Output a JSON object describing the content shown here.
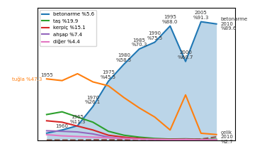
{
  "chart_data": {
    "type": "line",
    "x": [
      1955,
      1960,
      1965,
      1970,
      1975,
      1980,
      1985,
      1990,
      1995,
      2000,
      2005,
      2010
    ],
    "xlim": [
      1952,
      2016
    ],
    "ylim": [
      0,
      102
    ],
    "tick_labels": false,
    "legend": "upper left",
    "series": [
      {
        "name": "betonarme %5.6",
        "type": "area",
        "values": [
          5.6,
          8.0,
          11.3,
          26.1,
          45.5,
          58.5,
          70.3,
          75.5,
          88.0,
          60.7,
          91.3,
          89.6
        ]
      },
      {
        "values": [
          47.3,
          46.0,
          51.3,
          45.0,
          42.0,
          33.0,
          25.0,
          18.0,
          8.0,
          35.0,
          5.5,
          4.5
        ]
      },
      {
        "name": "taş %19.9",
        "values": [
          19.9,
          22.0,
          18.0,
          14.0,
          7.0,
          4.0,
          2.5,
          1.5,
          1.0,
          1.2,
          0.8,
          0.8
        ]
      },
      {
        "name": "kerpiç %15.1",
        "values": [
          15.1,
          14.0,
          11.0,
          8.0,
          4.0,
          2.5,
          1.5,
          1.0,
          0.7,
          1.0,
          0.6,
          0.5
        ]
      },
      {
        "name": "ahşap %7.4",
        "values": [
          7.4,
          7.0,
          6.5,
          5.0,
          2.5,
          1.5,
          1.0,
          0.7,
          0.5,
          0.8,
          0.4,
          0.4
        ]
      },
      {
        "line_style": "dashed",
        "values": [
          0.3,
          0.3,
          0.3,
          0.5,
          0.5,
          0.5,
          0.8,
          0.8,
          0.8,
          1.0,
          1.0,
          2.7
        ]
      },
      {
        "name": "diğer %4.4",
        "values": [
          4.4,
          3.5,
          3.0,
          2.5,
          2.0,
          1.5,
          1.0,
          0.8,
          0.5,
          0.6,
          0.4,
          0.4
        ]
      }
    ],
    "annotations": [
      {
        "text": "tuğla %47.3",
        "x": 1955,
        "y": 47.3
      },
      {
        "text": "1955",
        "x": 1955,
        "y": 47.3
      },
      {
        "text": "1960",
        "x": 1960,
        "y": 8.0
      },
      {
        "text": "1965\n%11.3",
        "x": 1965,
        "y": 11.3
      },
      {
        "text": "1970\n%26.1",
        "x": 1970,
        "y": 26.1
      },
      {
        "text": "1975\n%45.5",
        "x": 1975,
        "y": 45.5
      },
      {
        "text": "1980\n%58.5",
        "x": 1980,
        "y": 58.5
      },
      {
        "text": "1985\n%70.3",
        "x": 1985,
        "y": 70.3
      },
      {
        "text": "1990\n%75.5",
        "x": 1990,
        "y": 75.5
      },
      {
        "text": "1995\n%88.0",
        "x": 1995,
        "y": 88.0
      },
      {
        "text": "2000\n%60.7",
        "x": 2000,
        "y": 60.7
      },
      {
        "text": "2005\n%91.3",
        "x": 2005,
        "y": 91.3
      },
      {
        "text": "betonarme\n2010\n%89.6",
        "x": 2010,
        "y": 89.6
      },
      {
        "text": "çelik\n2010\n%2.7",
        "x": 2010,
        "y": 2.7
      }
    ]
  }
}
